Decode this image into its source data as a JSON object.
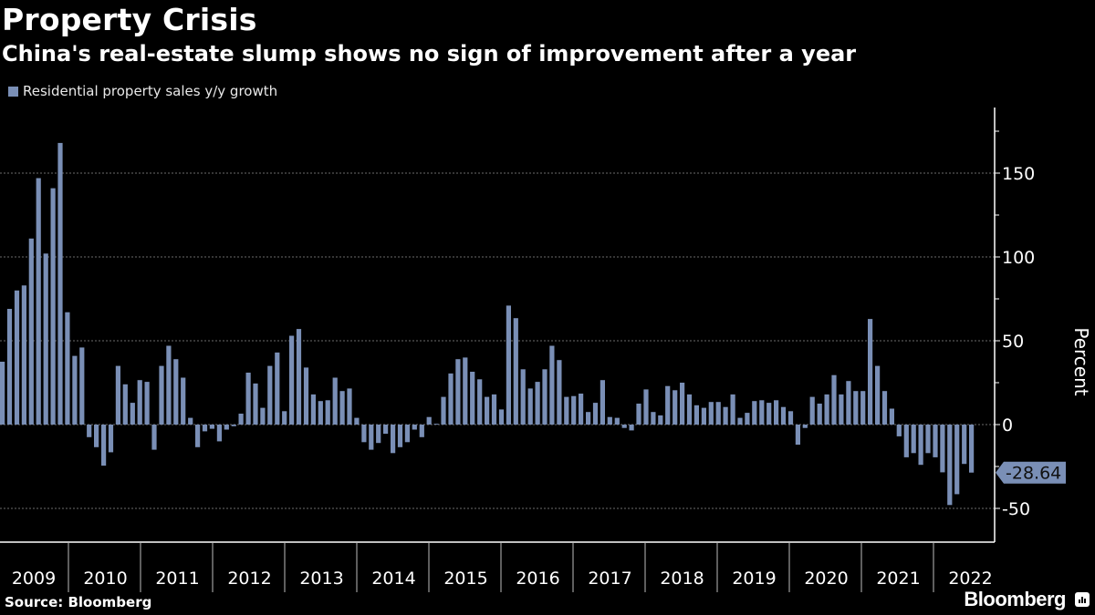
{
  "header": {
    "title": "Property Crisis",
    "subtitle": "China's real-estate slump shows no sign of improvement after a year"
  },
  "footer": {
    "source": "Source: Bloomberg",
    "brand": "Bloomberg"
  },
  "colors": {
    "bar": "#7a8fb6",
    "background": "#000000",
    "grid": "#6b6b6b",
    "axis": "#ffffff",
    "tag_text": "#111111"
  },
  "chart_data": {
    "type": "bar",
    "title": "Property Crisis",
    "subtitle": "China's real-estate slump shows no sign of improvement after a year",
    "legend": [
      "Residential property sales y/y growth"
    ],
    "legend_position": "top-left",
    "xlabel": "",
    "ylabel": "Percent",
    "ylim": [
      -70,
      190
    ],
    "yticks": [
      -50,
      0,
      50,
      100,
      150
    ],
    "grid": true,
    "x_year_labels": [
      "2009",
      "2010",
      "2011",
      "2012",
      "2013",
      "2014",
      "2015",
      "2016",
      "2017",
      "2018",
      "2019",
      "2020",
      "2021",
      "2022"
    ],
    "last_value_label": "-28.64",
    "series": [
      {
        "name": "Residential property sales y/y growth",
        "values": [
          37.5,
          69,
          80,
          83,
          111,
          147,
          102,
          141,
          168,
          67,
          41,
          46,
          -7.5,
          -13.5,
          -24.5,
          -16.5,
          35,
          24,
          13,
          26.5,
          25.5,
          -15,
          35,
          47,
          39,
          28,
          4,
          -13.5,
          -4,
          -2.5,
          -10,
          -3,
          -1,
          6.5,
          31,
          24.5,
          10,
          35,
          43,
          8,
          53,
          57,
          34,
          18,
          14,
          14.5,
          28,
          20,
          21.5,
          4,
          -10.5,
          -15,
          -11,
          -5.5,
          -17,
          -13.5,
          -10.5,
          -3,
          -7.5,
          4.5,
          0.5,
          16.5,
          30.5,
          39,
          40,
          31.5,
          27,
          16.5,
          18,
          9,
          71,
          63.5,
          33,
          21.5,
          25.5,
          33,
          47,
          38.5,
          16.5,
          17,
          18.5,
          7.5,
          13,
          26.5,
          4.5,
          4,
          -2,
          -3.5,
          12.5,
          21,
          7.5,
          5.5,
          23,
          20.5,
          25,
          18,
          11.5,
          10,
          13.5,
          13.5,
          10.5,
          18,
          4,
          7,
          14,
          14.5,
          13,
          14.5,
          10.5,
          8,
          -12,
          -2,
          16.5,
          12.5,
          18,
          29.5,
          18,
          26,
          20,
          20,
          63,
          35,
          20,
          9.5,
          -7,
          -19.5,
          -17,
          -24,
          -17,
          -19.5,
          -28.5,
          -48,
          -41.5,
          -23.5,
          -28.64
        ]
      }
    ]
  }
}
